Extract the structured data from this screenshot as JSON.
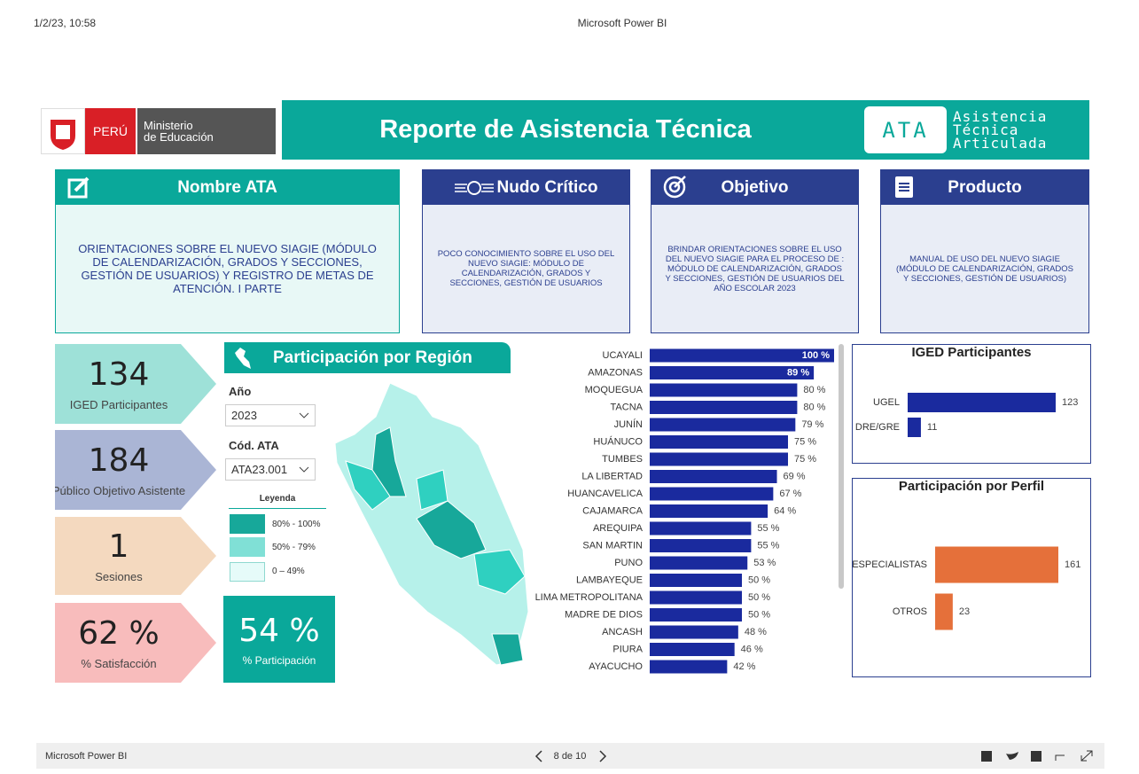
{
  "browser_header": {
    "datetime": "1/2/23, 10:58",
    "title": "Microsoft Power BI"
  },
  "logo": {
    "country": "PERÚ",
    "ministry_lines": [
      "Ministerio",
      "de Educación"
    ]
  },
  "header": {
    "title": "Reporte de Asistencia Técnica",
    "badge": "ATA",
    "badge_lines": [
      "Asistencia",
      "Técnica",
      "Articulada"
    ]
  },
  "cards": [
    {
      "title": "Nombre ATA",
      "body": "ORIENTACIONES SOBRE EL NUEVO SIAGIE (MÓDULO DE CALENDARIZACIÓN, GRADOS Y SECCIONES, GESTIÓN DE USUARIOS) Y REGISTRO DE METAS DE ATENCIÓN. I PARTE"
    },
    {
      "title": "Nudo Crítico",
      "body": "POCO CONOCIMIENTO SOBRE EL USO DEL NUEVO SIAGIE: MÓDULO DE CALENDARIZACIÓN, GRADOS Y SECCIONES, GESTIÓN DE USUARIOS"
    },
    {
      "title": "Objetivo",
      "body": "BRINDAR ORIENTACIONES SOBRE EL USO DEL NUEVO SIAGIE PARA EL PROCESO DE : MÓDULO DE CALENDARIZACIÓN, GRADOS Y SECCIONES, GESTIÓN DE USUARIOS DEL AÑO ESCOLAR 2023"
    },
    {
      "title": "Producto",
      "body": "MANUAL DE USO DEL NUEVO SIAGIE (MÓDULO DE CALENDARIZACIÓN, GRADOS Y SECCIONES, GESTIÓN DE USUARIOS)"
    }
  ],
  "kpis": [
    {
      "value": "134",
      "label": "IGED Participantes"
    },
    {
      "value": "184",
      "label": "Público Objetivo Asistente"
    },
    {
      "value": "1",
      "label": "Sesiones"
    },
    {
      "value": "62 %",
      "label": "% Satisfacción"
    }
  ],
  "region_panel": {
    "title": "Participación por Región",
    "filters": [
      {
        "label": "Año",
        "value": "2023"
      },
      {
        "label": "Cód. ATA",
        "value": "ATA23.001"
      }
    ],
    "legend": {
      "title": "Leyenda",
      "items": [
        "80% - 100%",
        "50% - 79%",
        "0 – 49%"
      ]
    },
    "participation": {
      "value": "54 %",
      "label": "% Participación"
    }
  },
  "chart_data": [
    {
      "type": "bar",
      "orientation": "horizontal",
      "color": "#1a2a9e",
      "categories": [
        "UCAYALI",
        "AMAZONAS",
        "MOQUEGUA",
        "TACNA",
        "JUNÍN",
        "HUÁNUCO",
        "TUMBES",
        "LA LIBERTAD",
        "HUANCAVELICA",
        "CAJAMARCA",
        "AREQUIPA",
        "SAN MARTIN",
        "PUNO",
        "LAMBAYEQUE",
        "LIMA METROPOLITANA",
        "MADRE DE DIOS",
        "ANCASH",
        "PIURA",
        "AYACUCHO"
      ],
      "values": [
        100,
        89,
        80,
        80,
        79,
        75,
        75,
        69,
        67,
        64,
        55,
        55,
        53,
        50,
        50,
        50,
        48,
        46,
        42
      ],
      "value_labels": [
        "100 %",
        "89 %",
        "80 %",
        "80 %",
        "79 %",
        "75 %",
        "75 %",
        "69 %",
        "67 %",
        "64 %",
        "55 %",
        "55 %",
        "53 %",
        "50 %",
        "50 %",
        "50 %",
        "48 %",
        "46 %",
        "42 %"
      ]
    },
    {
      "type": "bar",
      "orientation": "horizontal",
      "title": "IGED Participantes",
      "color": "#1a2a9e",
      "categories": [
        "UGEL",
        "DRE/GRE"
      ],
      "values": [
        123,
        11
      ]
    },
    {
      "type": "bar",
      "orientation": "horizontal",
      "title": "Participación por Perfil",
      "color": "#e5703a",
      "categories": [
        "ESPECIALISTAS",
        "OTROS"
      ],
      "values": [
        161,
        23
      ]
    }
  ],
  "footer": {
    "app": "Microsoft Power BI",
    "page": "8 de 10"
  }
}
